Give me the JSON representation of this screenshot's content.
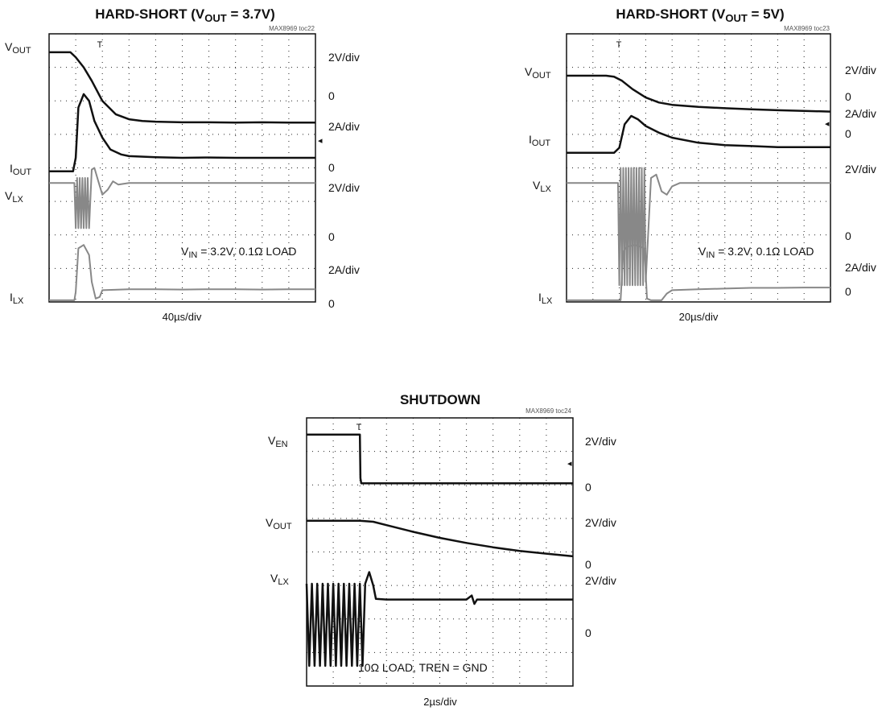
{
  "chart_data": [
    {
      "type": "line",
      "title": "HARD-SHORT (V",
      "title_sub": "OUT",
      "title_end": " = 3.7V)",
      "code": "MAX8969 toc22",
      "timebase": "40µs/div",
      "annotation": "V",
      "annotation_sub": "IN",
      "annotation_end": " = 3.2V, 0.1Ω LOAD",
      "trigger_marker": true,
      "x_divisions": 10,
      "y_divisions": 8,
      "channels": [
        {
          "name": "V",
          "name_sub": "OUT",
          "scale": "2V/div",
          "zero": "0",
          "color": "#111111",
          "x": [
            0,
            0.8,
            1.0,
            1.3,
            1.6,
            2.0,
            2.5,
            3.0,
            3.5,
            4.0,
            5.0,
            6.0,
            7.0,
            8.0,
            9.0,
            10.0
          ],
          "y": [
            7.45,
            7.45,
            7.3,
            7.0,
            6.6,
            6.0,
            5.6,
            5.45,
            5.4,
            5.38,
            5.36,
            5.36,
            5.35,
            5.36,
            5.35,
            5.35
          ]
        },
        {
          "name": "I",
          "name_sub": "OUT",
          "scale": "2A/div",
          "zero": "0",
          "color": "#111111",
          "x": [
            0,
            0.9,
            1.0,
            1.1,
            1.3,
            1.5,
            1.7,
            2.0,
            2.3,
            2.7,
            3.0,
            4.0,
            5.0,
            6.0,
            7.0,
            8.0,
            9.0,
            10.0
          ],
          "y": [
            3.9,
            3.9,
            4.3,
            5.8,
            6.2,
            6.0,
            5.4,
            4.9,
            4.55,
            4.4,
            4.35,
            4.32,
            4.3,
            4.31,
            4.3,
            4.3,
            4.3,
            4.3
          ]
        },
        {
          "name": "V",
          "name_sub": "LX",
          "scale": "2V/div",
          "zero": "0",
          "color": "#888888",
          "x": [
            0,
            0.95,
            1.0,
            1.05,
            1.1,
            1.15,
            1.2,
            1.25,
            1.3,
            1.35,
            1.4,
            1.45,
            1.5,
            1.6,
            1.7,
            1.85,
            2.0,
            2.2,
            2.4,
            2.6,
            3.0,
            4.0,
            5.0,
            6.0,
            7.0,
            8.0,
            9.0,
            10.0
          ],
          "y": [
            3.55,
            3.55,
            2.2,
            3.7,
            2.2,
            3.7,
            2.2,
            3.7,
            2.2,
            3.7,
            2.2,
            3.7,
            2.2,
            3.95,
            4.0,
            3.6,
            3.2,
            3.35,
            3.6,
            3.5,
            3.55,
            3.55,
            3.55,
            3.55,
            3.55,
            3.55,
            3.55,
            3.55
          ]
        },
        {
          "name": "I",
          "name_sub": "LX",
          "scale": "2A/div",
          "zero": "0",
          "color": "#888888",
          "x": [
            0,
            0.95,
            1.0,
            1.1,
            1.3,
            1.5,
            1.6,
            1.75,
            1.9,
            2.0,
            3.0,
            4.0,
            5.0,
            6.0,
            7.0,
            8.0,
            9.0,
            10.0
          ],
          "y": [
            0.05,
            0.05,
            0.3,
            1.6,
            1.7,
            1.4,
            0.6,
            0.1,
            0.15,
            0.35,
            0.38,
            0.38,
            0.37,
            0.38,
            0.38,
            0.37,
            0.38,
            0.38
          ]
        }
      ]
    },
    {
      "type": "line",
      "title": "HARD-SHORT (V",
      "title_sub": "OUT",
      "title_end": " = 5V)",
      "code": "MAX8969 toc23",
      "timebase": "20µs/div",
      "annotation": "V",
      "annotation_sub": "IN",
      "annotation_end": " = 3.2V, 0.1Ω LOAD",
      "trigger_marker": true,
      "x_divisions": 10,
      "y_divisions": 8,
      "channels": [
        {
          "name": "V",
          "name_sub": "OUT",
          "scale": "2V/div",
          "zero": "0",
          "color": "#111111",
          "x": [
            0,
            1.5,
            1.8,
            2.1,
            2.5,
            3.0,
            3.5,
            4.0,
            5.0,
            6.0,
            7.0,
            8.0,
            9.0,
            10.0
          ],
          "y": [
            6.75,
            6.75,
            6.72,
            6.6,
            6.35,
            6.1,
            5.95,
            5.88,
            5.82,
            5.78,
            5.75,
            5.72,
            5.7,
            5.68
          ]
        },
        {
          "name": "I",
          "name_sub": "OUT",
          "scale": "2A/div",
          "zero": "0",
          "color": "#111111",
          "x": [
            0,
            1.8,
            2.0,
            2.2,
            2.45,
            2.7,
            3.0,
            3.5,
            4.0,
            5.0,
            6.0,
            7.0,
            8.0,
            9.0,
            10.0
          ],
          "y": [
            4.45,
            4.45,
            4.6,
            5.3,
            5.55,
            5.45,
            5.25,
            5.05,
            4.9,
            4.75,
            4.68,
            4.65,
            4.62,
            4.62,
            4.62
          ]
        },
        {
          "name": "V",
          "name_sub": "LX",
          "scale": "2V/div",
          "zero": "0",
          "color": "#888888",
          "x": [
            0,
            1.95,
            2.0,
            2.05,
            2.1,
            2.15,
            2.2,
            2.25,
            2.3,
            2.35,
            2.4,
            2.45,
            2.5,
            2.55,
            2.6,
            2.65,
            2.7,
            2.75,
            2.8,
            2.85,
            2.9,
            2.95,
            3.0,
            3.2,
            3.4,
            3.6,
            3.8,
            4.0,
            4.3,
            5.0,
            6.0,
            7.0,
            8.0,
            9.0,
            10.0
          ],
          "y": [
            3.55,
            3.55,
            0.5,
            4.0,
            0.5,
            4.0,
            0.5,
            4.0,
            0.5,
            4.0,
            0.5,
            4.0,
            0.5,
            4.0,
            0.5,
            4.0,
            0.5,
            4.0,
            0.5,
            4.0,
            0.5,
            4.0,
            0.6,
            3.7,
            3.8,
            3.3,
            3.2,
            3.45,
            3.55,
            3.55,
            3.55,
            3.55,
            3.55,
            3.55,
            3.55
          ]
        },
        {
          "name": "I",
          "name_sub": "LX",
          "scale": "2A/div",
          "zero": "0",
          "color": "#888888",
          "x": [
            0,
            2.05,
            2.15,
            2.3,
            2.6,
            2.95,
            3.05,
            3.2,
            3.6,
            3.8,
            4.0,
            5.0,
            6.0,
            7.0,
            8.0,
            9.0,
            10.0
          ],
          "y": [
            0.05,
            0.05,
            1.5,
            1.65,
            1.7,
            1.6,
            0.1,
            0.05,
            0.05,
            0.25,
            0.35,
            0.38,
            0.4,
            0.42,
            0.42,
            0.43,
            0.43
          ]
        }
      ]
    },
    {
      "type": "line",
      "title": "SHUTDOWN",
      "title_sub": "",
      "title_end": "",
      "code": "MAX8969 toc24",
      "timebase": "2µs/div",
      "annotation": "10Ω LOAD, TREN = GND",
      "annotation_sub": "",
      "annotation_end": "",
      "trigger_marker": true,
      "x_divisions": 10,
      "y_divisions": 8,
      "channels": [
        {
          "name": "V",
          "name_sub": "EN",
          "scale": "2V/div",
          "zero": "0",
          "color": "#111111",
          "x": [
            0,
            2.0,
            2.02,
            2.05,
            3.0,
            4.0,
            5.0,
            6.0,
            7.0,
            8.0,
            9.0,
            10.0
          ],
          "y": [
            7.5,
            7.5,
            6.2,
            6.05,
            6.05,
            6.05,
            6.05,
            6.05,
            6.05,
            6.05,
            6.05,
            6.05
          ]
        },
        {
          "name": "V",
          "name_sub": "OUT",
          "scale": "2V/div",
          "zero": "0",
          "color": "#111111",
          "x": [
            0,
            1.0,
            2.0,
            2.5,
            3.0,
            4.0,
            5.0,
            6.0,
            7.0,
            8.0,
            9.0,
            10.0
          ],
          "y": [
            4.93,
            4.93,
            4.93,
            4.9,
            4.8,
            4.6,
            4.42,
            4.27,
            4.14,
            4.03,
            3.95,
            3.87
          ]
        },
        {
          "name": "V",
          "name_sub": "LX",
          "scale": "2V/div",
          "zero": "0",
          "color": "#111111",
          "x": [
            0,
            0.1,
            0.2,
            0.3,
            0.4,
            0.5,
            0.6,
            0.7,
            0.8,
            0.9,
            1.0,
            1.1,
            1.2,
            1.3,
            1.4,
            1.5,
            1.6,
            1.7,
            1.8,
            1.9,
            2.0,
            2.1,
            2.2,
            2.35,
            2.5,
            2.6,
            3.0,
            4.0,
            5.0,
            6.0,
            6.2,
            6.3,
            6.4,
            7.0,
            8.0,
            9.0,
            10.0
          ],
          "y": [
            3.05,
            0.6,
            3.05,
            0.6,
            3.05,
            0.6,
            3.05,
            0.6,
            3.05,
            0.6,
            3.05,
            0.6,
            3.05,
            0.6,
            3.05,
            0.6,
            3.05,
            0.6,
            3.05,
            0.6,
            3.05,
            0.6,
            3.05,
            3.4,
            3.0,
            2.6,
            2.58,
            2.58,
            2.58,
            2.58,
            2.7,
            2.45,
            2.58,
            2.58,
            2.58,
            2.58,
            2.58
          ]
        }
      ]
    }
  ]
}
